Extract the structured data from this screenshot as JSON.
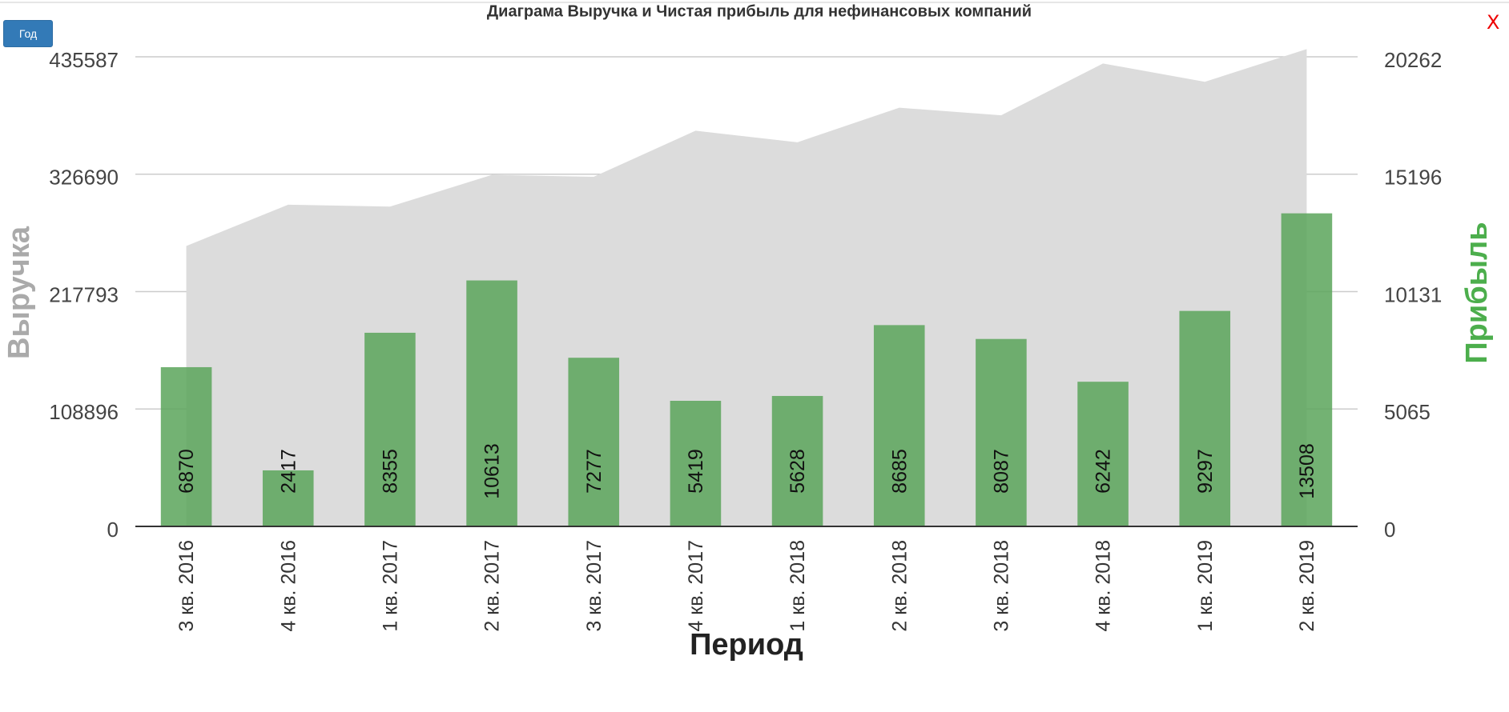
{
  "ui": {
    "button": "Год",
    "close": "X"
  },
  "chart_data": {
    "type": "bar",
    "title": "Диаграма Выручка и Чистая прибыль для нефинансовых компаний",
    "x_label": "Период",
    "y_label": "Выручка",
    "y2_label": "Прибыль",
    "categories": [
      "3 кв. 2016",
      "4 кв. 2016",
      "1 кв. 2017",
      "2 кв. 2017",
      "3 кв. 2017",
      "4 кв. 2017",
      "1 кв. 2018",
      "2 кв. 2018",
      "3 кв. 2018",
      "4 кв. 2018",
      "1 кв. 2019",
      "2 кв. 2019"
    ],
    "series": [
      {
        "type": "area",
        "color": "#dcdcdc",
        "axis": "y",
        "values": [
          260100,
          298400,
          296600,
          326000,
          324300,
          367000,
          356300,
          388400,
          381300,
          429400,
          412400,
          442700
        ]
      },
      {
        "type": "bar",
        "color": "#5aa55a",
        "axis": "y2",
        "values": [
          6870,
          2417,
          8355,
          10613,
          7277,
          5419,
          5628,
          8685,
          8087,
          6242,
          9297,
          13508
        ]
      }
    ],
    "ylim": [
      0,
      435587
    ],
    "yticks": [
      0,
      108896,
      217793,
      326690,
      435587
    ],
    "y2lim": [
      0,
      20262
    ],
    "y2ticks": [
      0,
      5065,
      10131,
      15196,
      20262
    ],
    "grid": true
  }
}
